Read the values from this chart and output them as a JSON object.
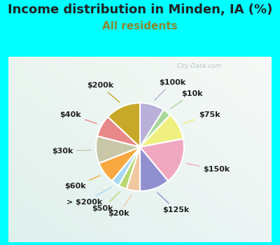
{
  "title": "Income distribution in Minden, IA (%)",
  "subtitle": "All residents",
  "background_color": "#00FFFF",
  "labels": [
    "$100k",
    "$10k",
    "$75k",
    "$150k",
    "$125k",
    "$20k",
    "$50k",
    "> $200k",
    "$60k",
    "$30k",
    "$40k",
    "$200k"
  ],
  "values": [
    9,
    3,
    10,
    17,
    11,
    5,
    3,
    3,
    8,
    10,
    8,
    13
  ],
  "colors": [
    "#b8b0d8",
    "#a8d898",
    "#f0f080",
    "#f0a8c0",
    "#9090d0",
    "#f0c8a0",
    "#b8d870",
    "#a8d8f0",
    "#f8a840",
    "#c8c8a8",
    "#e88888",
    "#c8a828"
  ],
  "title_fontsize": 13,
  "subtitle_fontsize": 11,
  "label_fontsize": 8,
  "watermark": "City-Data.com",
  "subtitle_color": "#888833",
  "title_color": "#222222"
}
